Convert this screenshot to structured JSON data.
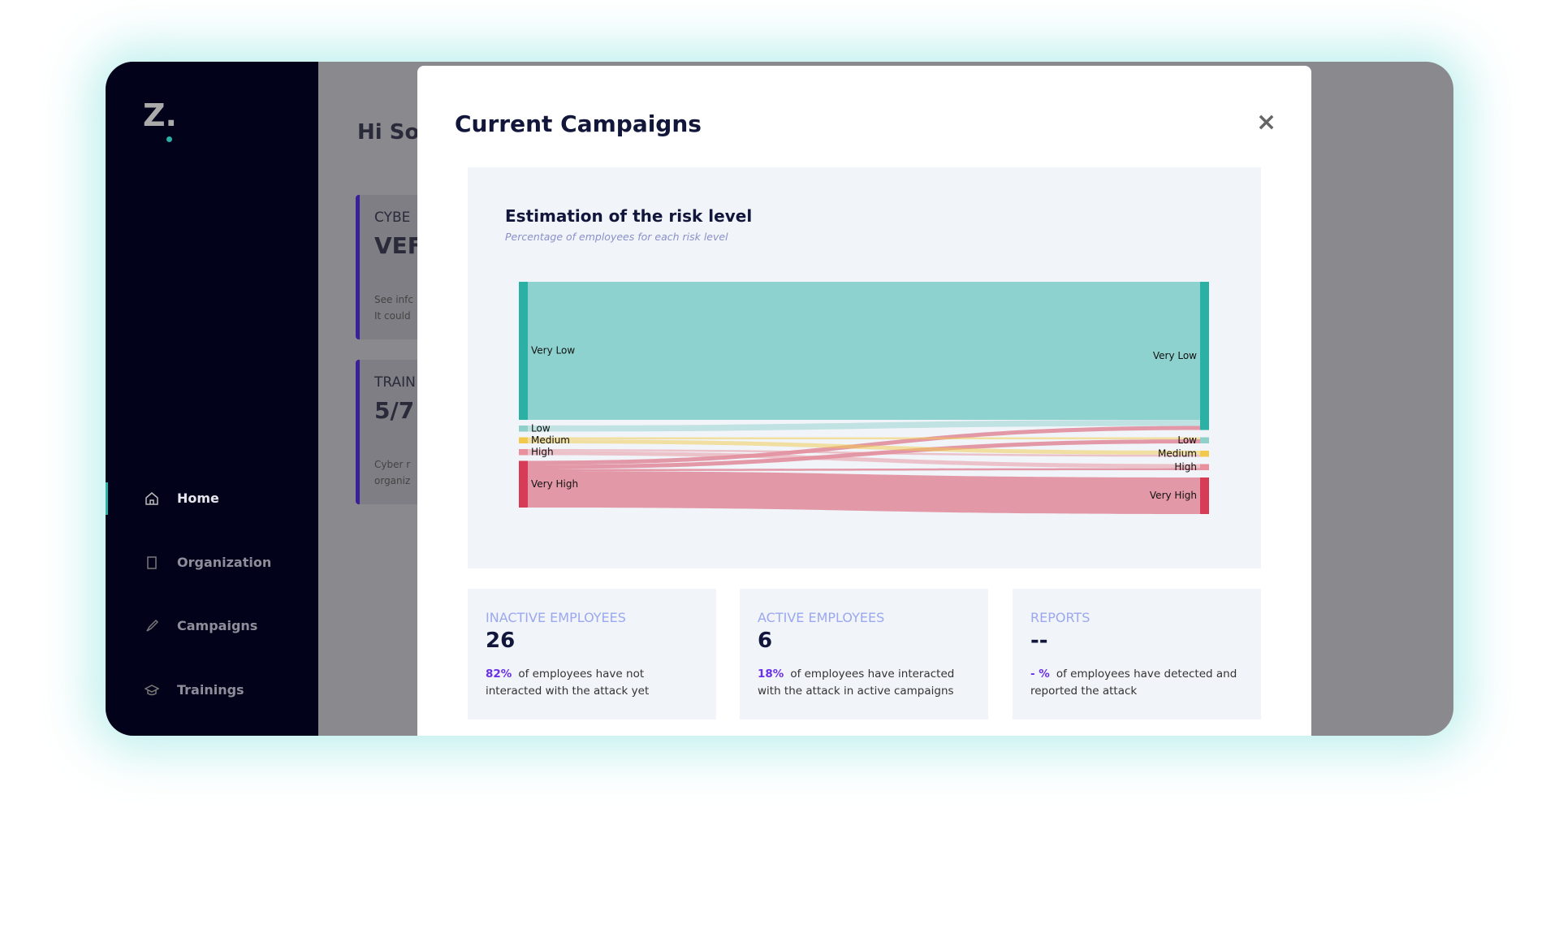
{
  "sidebar": {
    "logo": "Z.",
    "nav": [
      "Home",
      "Organization",
      "Campaigns",
      "Trainings"
    ]
  },
  "background": {
    "greeting": "Hi So",
    "cards": [
      {
        "label": "CYBE",
        "value": "VEF",
        "text": [
          "See infc",
          "It could"
        ]
      },
      {
        "label": "TRAIN",
        "value": "5/7",
        "text": [
          "Cyber r",
          "organiz"
        ]
      }
    ]
  },
  "modal": {
    "title": "Current Campaigns",
    "close": "×"
  },
  "chart_data": {
    "type": "sankey",
    "title": "Estimation of the risk level",
    "subtitle": "Percentage of employees for each risk level",
    "left_nodes": [
      {
        "name": "Very Low",
        "color": "#2bb0a6"
      },
      {
        "name": "Low",
        "color": "#8fd0cb"
      },
      {
        "name": "Medium",
        "color": "#f2c94c"
      },
      {
        "name": "High",
        "color": "#e8909c"
      },
      {
        "name": "Very High",
        "color": "#d63c55"
      }
    ],
    "right_nodes": [
      {
        "name": "Very Low",
        "color": "#2bb0a6"
      },
      {
        "name": "Low",
        "color": "#8fd0cb"
      },
      {
        "name": "Medium",
        "color": "#f2c94c"
      },
      {
        "name": "High",
        "color": "#e8909c"
      },
      {
        "name": "Very High",
        "color": "#d63c55"
      }
    ],
    "links": [
      {
        "from": 0,
        "to": 0,
        "value": 68
      },
      {
        "from": 1,
        "to": 0,
        "value": 3
      },
      {
        "from": 4,
        "to": 0,
        "value": 2
      },
      {
        "from": 2,
        "to": 1,
        "value": 1
      },
      {
        "from": 4,
        "to": 1,
        "value": 2
      },
      {
        "from": 2,
        "to": 2,
        "value": 2
      },
      {
        "from": 3,
        "to": 2,
        "value": 1
      },
      {
        "from": 3,
        "to": 3,
        "value": 2
      },
      {
        "from": 4,
        "to": 3,
        "value": 1
      },
      {
        "from": 4,
        "to": 4,
        "value": 18
      }
    ]
  },
  "stats": [
    {
      "label": "INACTIVE EMPLOYEES",
      "value": 26,
      "percent": "82%",
      "text": "of employees have not interacted with the attack yet"
    },
    {
      "label": "ACTIVE EMPLOYEES",
      "value": 6,
      "percent": "18%",
      "text": "of employees have interacted with the attack in active campaigns"
    },
    {
      "label": "REPORTS",
      "value": "--",
      "percent": "- %",
      "text": "of employees have detected and reported the attack"
    }
  ]
}
